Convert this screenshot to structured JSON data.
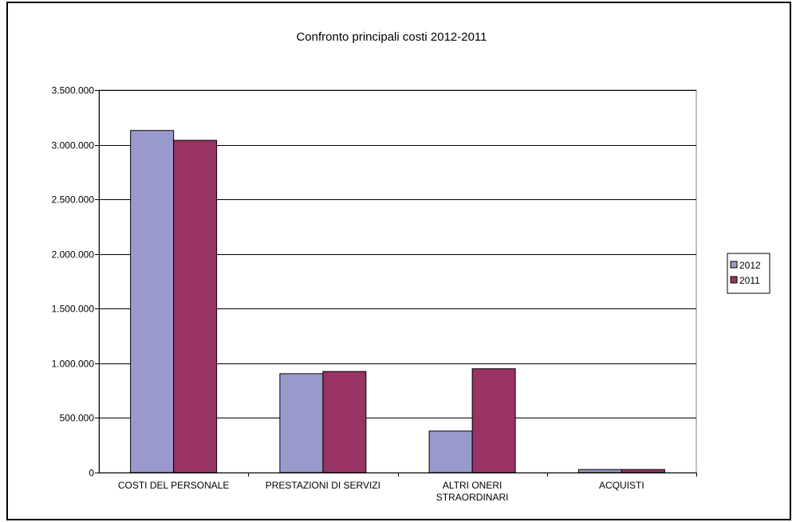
{
  "chart_data": {
    "type": "bar",
    "title": "Confronto principali costi 2012-2011",
    "xlabel": "",
    "ylabel": "",
    "categories": [
      [
        "COSTI DEL PERSONALE"
      ],
      [
        "PRESTAZIONI DI SERVIZI"
      ],
      [
        "ALTRI ONERI",
        "STRAORDINARI"
      ],
      [
        "ACQUISTI"
      ]
    ],
    "series": [
      {
        "name": "2012",
        "values": [
          3130000,
          905000,
          380000,
          28000
        ],
        "color": "#9999CC"
      },
      {
        "name": "2011",
        "values": [
          3040000,
          925000,
          950000,
          28000
        ],
        "color": "#993366"
      }
    ],
    "ylim": [
      0,
      3500000
    ],
    "yticks": [
      0,
      500000,
      1000000,
      1500000,
      2000000,
      2500000,
      3000000,
      3500000
    ],
    "ytick_labels": [
      "0",
      "500.000",
      "1.000.000",
      "1.500.000",
      "2.000.000",
      "2.500.000",
      "3.000.000",
      "3.500.000"
    ],
    "grid": true,
    "legend_position": "right"
  }
}
